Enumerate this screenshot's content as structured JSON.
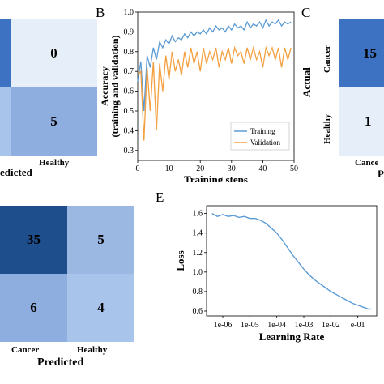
{
  "colors": {
    "dark": "#1f4e8c",
    "mid": "#3d72c2",
    "light": "#9bb8e3",
    "lighter": "#a9c4ea",
    "lightest": "#e6eef9",
    "training": "#5b9bd5",
    "validation": "#f4a040"
  },
  "panel_a": {
    "cells": [
      "0",
      "5"
    ],
    "x_tick": "Healthy",
    "xlabel_fragment": "edicted"
  },
  "panel_b": {
    "letter": "B",
    "chart_data": {
      "type": "line",
      "xlabel": "Training steps",
      "ylabel_line1": "Accuracy",
      "ylabel_line2": "(training and validation)",
      "xlim": [
        0,
        50
      ],
      "ylim": [
        0.25,
        1.0
      ],
      "xticks": [
        "0",
        "10",
        "20",
        "30",
        "40",
        "50"
      ],
      "yticks": [
        "0.3",
        "0.4",
        "0.5",
        "0.6",
        "0.7",
        "0.8",
        "0.9",
        "1.0"
      ],
      "legend": "lower-right",
      "series": [
        {
          "name": "Training",
          "x": [
            0,
            1,
            2,
            3,
            4,
            5,
            6,
            7,
            8,
            9,
            10,
            11,
            12,
            13,
            14,
            15,
            16,
            17,
            18,
            19,
            20,
            21,
            22,
            23,
            24,
            25,
            26,
            27,
            28,
            29,
            30,
            31,
            32,
            33,
            34,
            35,
            36,
            37,
            38,
            39,
            40,
            41,
            42,
            43,
            44,
            45,
            46,
            47,
            48,
            49
          ],
          "y": [
            0.65,
            0.75,
            0.5,
            0.78,
            0.72,
            0.82,
            0.76,
            0.85,
            0.82,
            0.86,
            0.84,
            0.88,
            0.85,
            0.87,
            0.86,
            0.89,
            0.87,
            0.9,
            0.88,
            0.9,
            0.89,
            0.91,
            0.89,
            0.92,
            0.9,
            0.93,
            0.91,
            0.92,
            0.9,
            0.93,
            0.91,
            0.94,
            0.92,
            0.93,
            0.91,
            0.95,
            0.92,
            0.94,
            0.93,
            0.95,
            0.92,
            0.96,
            0.93,
            0.95,
            0.94,
            0.96,
            0.93,
            0.95,
            0.94,
            0.95
          ]
        },
        {
          "name": "Validation",
          "x": [
            0,
            1,
            2,
            3,
            4,
            5,
            6,
            7,
            8,
            9,
            10,
            11,
            12,
            13,
            14,
            15,
            16,
            17,
            18,
            19,
            20,
            21,
            22,
            23,
            24,
            25,
            26,
            27,
            28,
            29,
            30,
            31,
            32,
            33,
            34,
            35,
            36,
            37,
            38,
            39,
            40,
            41,
            42,
            43,
            44,
            45,
            46,
            47,
            48,
            49
          ],
          "y": [
            0.68,
            0.7,
            0.35,
            0.72,
            0.5,
            0.75,
            0.4,
            0.74,
            0.6,
            0.78,
            0.66,
            0.8,
            0.7,
            0.76,
            0.68,
            0.8,
            0.72,
            0.82,
            0.74,
            0.8,
            0.7,
            0.82,
            0.74,
            0.8,
            0.76,
            0.82,
            0.72,
            0.8,
            0.76,
            0.82,
            0.74,
            0.82,
            0.78,
            0.8,
            0.74,
            0.82,
            0.76,
            0.82,
            0.76,
            0.8,
            0.72,
            0.82,
            0.78,
            0.82,
            0.76,
            0.82,
            0.72,
            0.82,
            0.76,
            0.82
          ]
        }
      ]
    }
  },
  "panel_c": {
    "letter": "C",
    "cells": [
      "15",
      "1"
    ],
    "ylabel": "Actual",
    "y_ticks": [
      "Cancer",
      "Healthy"
    ],
    "x_tick_fragment": "Cance",
    "xlabel_fragment": "P"
  },
  "panel_d": {
    "cells": [
      "35",
      "5",
      "6",
      "4"
    ],
    "x_ticks": [
      "Cancer",
      "Healthy"
    ],
    "xlabel": "Predicted"
  },
  "panel_e": {
    "letter": "E",
    "chart_data": {
      "type": "line",
      "xlabel": "Learning Rate",
      "ylabel": "Loss",
      "x_scale": "log",
      "xlim_log10": [
        -6.6,
        -0.3
      ],
      "ylim": [
        0.55,
        1.68
      ],
      "xticks": [
        "1e-06",
        "1e-05",
        "1e-04",
        "1e-03",
        "1e-02",
        "e-01"
      ],
      "yticks": [
        "0.6",
        "0.8",
        "1.0",
        "1.2",
        "1.4",
        "1.6"
      ],
      "series": [
        {
          "log10_x": [
            -6.4,
            -6.2,
            -6.0,
            -5.8,
            -5.6,
            -5.4,
            -5.2,
            -5.0,
            -4.8,
            -4.6,
            -4.4,
            -4.2,
            -4.0,
            -3.8,
            -3.6,
            -3.4,
            -3.2,
            -3.0,
            -2.8,
            -2.6,
            -2.4,
            -2.2,
            -2.0,
            -1.8,
            -1.6,
            -1.4,
            -1.2,
            -1.0,
            -0.8,
            -0.6,
            -0.5
          ],
          "y": [
            1.6,
            1.57,
            1.59,
            1.57,
            1.58,
            1.56,
            1.57,
            1.55,
            1.55,
            1.53,
            1.5,
            1.45,
            1.4,
            1.33,
            1.25,
            1.17,
            1.1,
            1.03,
            0.97,
            0.92,
            0.88,
            0.84,
            0.8,
            0.77,
            0.74,
            0.71,
            0.68,
            0.66,
            0.64,
            0.62,
            0.62
          ]
        }
      ]
    }
  }
}
